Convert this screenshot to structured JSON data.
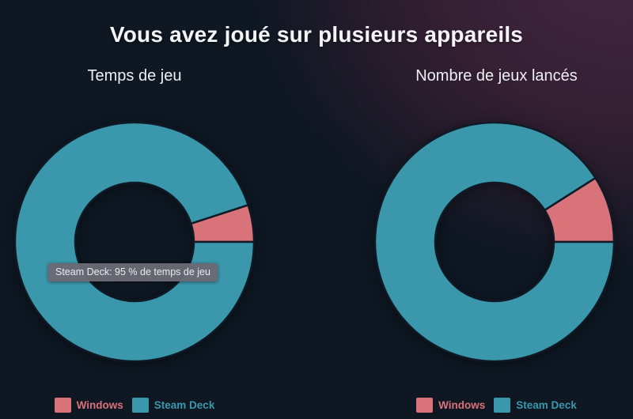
{
  "page": {
    "title": "Vous avez joué sur plusieurs appareils",
    "colors": {
      "background": "#0e1722",
      "background_glow": "#3a2136",
      "windows": "#d9737a",
      "steam_deck": "#3b98ac",
      "tooltip_bg": "#6a6a74"
    }
  },
  "chart_data": [
    {
      "type": "pie",
      "variant": "donut",
      "title": "Temps de jeu",
      "labels": [
        "Windows",
        "Steam Deck"
      ],
      "values": [
        5,
        95
      ],
      "value_unit": "percent",
      "colors": [
        "#d9737a",
        "#3b98ac"
      ],
      "start_angle_deg": 0,
      "direction": "counterclockwise",
      "inner_radius_ratio": 0.497,
      "legend_position": "bottom",
      "tooltip": {
        "visible": true,
        "text": "Steam Deck: 95 % de temps de jeu"
      }
    },
    {
      "type": "pie",
      "variant": "donut",
      "title": "Nombre de jeux lancés",
      "labels": [
        "Windows",
        "Steam Deck"
      ],
      "values": [
        9,
        91
      ],
      "value_unit": "percent",
      "colors": [
        "#d9737a",
        "#3b98ac"
      ],
      "start_angle_deg": 0,
      "direction": "counterclockwise",
      "inner_radius_ratio": 0.497,
      "legend_position": "bottom",
      "tooltip": {
        "visible": false,
        "text": ""
      }
    }
  ]
}
